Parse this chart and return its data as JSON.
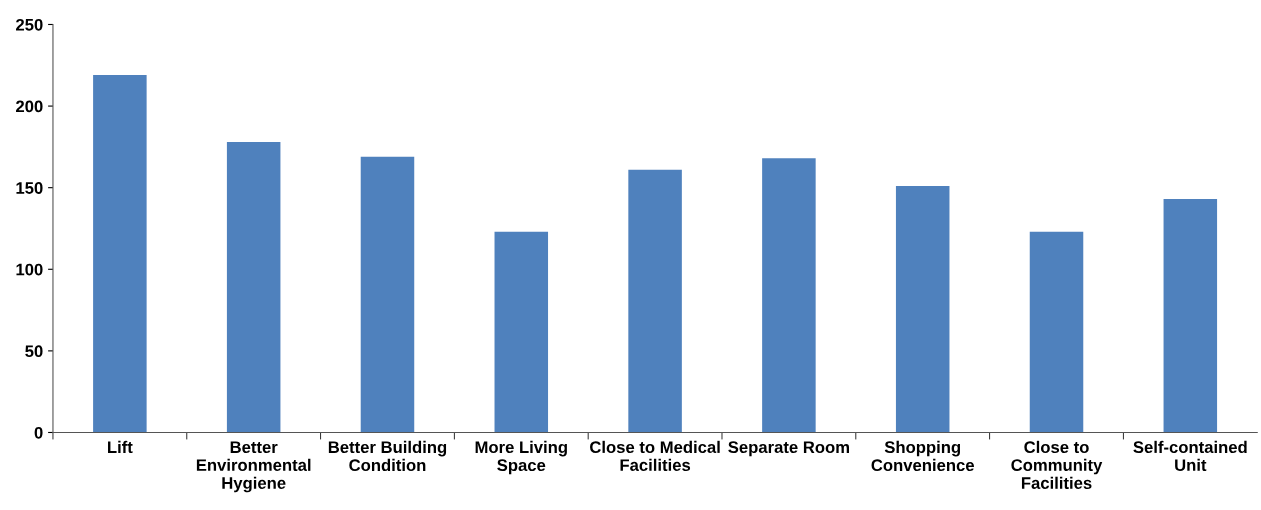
{
  "chart_data": {
    "type": "bar",
    "categories": [
      "Lift",
      "Better\nEnvironmental\nHygiene",
      "Better Building\nCondition",
      "More Living\nSpace",
      "Close to Medical\nFacilities",
      "Separate Room",
      "Shopping\nConvenience",
      "Close to\nCommunity\nFacilities",
      "Self-contained\nUnit"
    ],
    "values": [
      219,
      178,
      169,
      123,
      161,
      168,
      151,
      123,
      143
    ],
    "color": "#4f81bd",
    "ylim": [
      0,
      250
    ],
    "yticks": [
      0,
      50,
      100,
      150,
      200,
      250
    ],
    "grid": false
  }
}
